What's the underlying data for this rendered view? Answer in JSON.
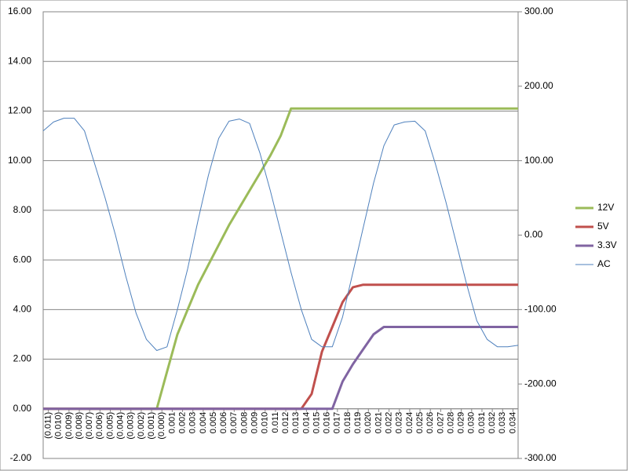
{
  "chart_data": {
    "type": "line",
    "x": [
      -0.0115,
      -0.0105,
      -0.0095,
      -0.0085,
      -0.0075,
      -0.0065,
      -0.0055,
      -0.0045,
      -0.0035,
      -0.0025,
      -0.0015,
      -0.0005,
      0.0005,
      0.0015,
      0.0025,
      0.0035,
      0.0045,
      0.0055,
      0.0065,
      0.0075,
      0.0085,
      0.0095,
      0.0105,
      0.0115,
      0.0125,
      0.0135,
      0.0145,
      0.0155,
      0.0165,
      0.0175,
      0.0185,
      0.0195,
      0.0205,
      0.0215,
      0.0225,
      0.0235,
      0.0245,
      0.0255,
      0.0265,
      0.0275,
      0.0285,
      0.0295,
      0.0305,
      0.0315,
      0.0325,
      0.0335,
      0.0345
    ],
    "series": [
      {
        "name": "12V",
        "color": "#9bbb59",
        "values": [
          0,
          0,
          0,
          0,
          0,
          0,
          0,
          0,
          0,
          0,
          0,
          0,
          1.5,
          3.0,
          4.0,
          5.0,
          5.8,
          6.6,
          7.4,
          8.1,
          8.8,
          9.5,
          10.2,
          11.0,
          12.1,
          12.1,
          12.1,
          12.1,
          12.1,
          12.1,
          12.1,
          12.1,
          12.1,
          12.1,
          12.1,
          12.1,
          12.1,
          12.1,
          12.1,
          12.1,
          12.1,
          12.1,
          12.1,
          12.1,
          12.1,
          12.1,
          12.1
        ]
      },
      {
        "name": "5V",
        "color": "#c0504d",
        "values": [
          0,
          0,
          0,
          0,
          0,
          0,
          0,
          0,
          0,
          0,
          0,
          0,
          0,
          0,
          0,
          0,
          0,
          0,
          0,
          0,
          0,
          0,
          0,
          0,
          0,
          0,
          0.6,
          2.3,
          3.3,
          4.3,
          4.9,
          5.0,
          5.0,
          5.0,
          5.0,
          5.0,
          5.0,
          5.0,
          5.0,
          5.0,
          5.0,
          5.0,
          5.0,
          5.0,
          5.0,
          5.0,
          5.0
        ]
      },
      {
        "name": "3.3V",
        "color": "#8064a2",
        "values": [
          0,
          0,
          0,
          0,
          0,
          0,
          0,
          0,
          0,
          0,
          0,
          0,
          0,
          0,
          0,
          0,
          0,
          0,
          0,
          0,
          0,
          0,
          0,
          0,
          0,
          0,
          0,
          0,
          0,
          1.1,
          1.8,
          2.4,
          3.0,
          3.3,
          3.3,
          3.3,
          3.3,
          3.3,
          3.3,
          3.3,
          3.3,
          3.3,
          3.3,
          3.3,
          3.3,
          3.3,
          3.3
        ]
      },
      {
        "name": "AC",
        "color": "#4f81bd",
        "axis": "y2",
        "values": [
          140,
          152,
          157,
          157,
          140,
          95,
          50,
          0,
          -55,
          -105,
          -140,
          -155,
          -150,
          -100,
          -45,
          20,
          80,
          130,
          153,
          156,
          150,
          110,
          60,
          5,
          -50,
          -100,
          -140,
          -150,
          -150,
          -110,
          -50,
          10,
          70,
          120,
          148,
          152,
          153,
          140,
          95,
          45,
          -10,
          -65,
          -115,
          -140,
          -150,
          -150,
          -148
        ]
      }
    ],
    "xlim": [
      -0.0115,
      0.0345
    ],
    "xticks": [
      {
        "value": -0.011,
        "label": "(0.011)"
      },
      {
        "value": -0.01,
        "label": "(0.010)"
      },
      {
        "value": -0.009,
        "label": "(0.009)"
      },
      {
        "value": -0.008,
        "label": "(0.008)"
      },
      {
        "value": -0.007,
        "label": "(0.007)"
      },
      {
        "value": -0.006,
        "label": "(0.006)"
      },
      {
        "value": -0.005,
        "label": "(0.005)"
      },
      {
        "value": -0.004,
        "label": "(0.004)"
      },
      {
        "value": -0.003,
        "label": "(0.003)"
      },
      {
        "value": -0.002,
        "label": "(0.002)"
      },
      {
        "value": -0.001,
        "label": "(0.001)"
      },
      {
        "value": 0,
        "label": "(0.000)"
      },
      {
        "value": 0.001,
        "label": "0.001"
      },
      {
        "value": 0.002,
        "label": "0.002"
      },
      {
        "value": 0.003,
        "label": "0.003"
      },
      {
        "value": 0.004,
        "label": "0.004"
      },
      {
        "value": 0.005,
        "label": "0.005"
      },
      {
        "value": 0.006,
        "label": "0.006"
      },
      {
        "value": 0.007,
        "label": "0.007"
      },
      {
        "value": 0.008,
        "label": "0.008"
      },
      {
        "value": 0.009,
        "label": "0.009"
      },
      {
        "value": 0.01,
        "label": "0.010"
      },
      {
        "value": 0.011,
        "label": "0.011"
      },
      {
        "value": 0.012,
        "label": "0.012"
      },
      {
        "value": 0.013,
        "label": "0.013"
      },
      {
        "value": 0.014,
        "label": "0.014"
      },
      {
        "value": 0.015,
        "label": "0.015"
      },
      {
        "value": 0.016,
        "label": "0.016"
      },
      {
        "value": 0.017,
        "label": "0.017"
      },
      {
        "value": 0.018,
        "label": "0.018"
      },
      {
        "value": 0.019,
        "label": "0.019"
      },
      {
        "value": 0.02,
        "label": "0.020"
      },
      {
        "value": 0.021,
        "label": "0.021"
      },
      {
        "value": 0.022,
        "label": "0.022"
      },
      {
        "value": 0.023,
        "label": "0.023"
      },
      {
        "value": 0.024,
        "label": "0.024"
      },
      {
        "value": 0.025,
        "label": "0.025"
      },
      {
        "value": 0.026,
        "label": "0.026"
      },
      {
        "value": 0.027,
        "label": "0.027"
      },
      {
        "value": 0.028,
        "label": "0.028"
      },
      {
        "value": 0.029,
        "label": "0.029"
      },
      {
        "value": 0.03,
        "label": "0.030"
      },
      {
        "value": 0.031,
        "label": "0.031"
      },
      {
        "value": 0.032,
        "label": "0.032"
      },
      {
        "value": 0.033,
        "label": "0.033"
      },
      {
        "value": 0.034,
        "label": "0.034"
      }
    ],
    "ylim": [
      -2,
      16
    ],
    "yticks": [
      {
        "value": -2,
        "label": "-2.00"
      },
      {
        "value": 0,
        "label": "0.00"
      },
      {
        "value": 2,
        "label": "2.00"
      },
      {
        "value": 4,
        "label": "4.00"
      },
      {
        "value": 6,
        "label": "6.00"
      },
      {
        "value": 8,
        "label": "8.00"
      },
      {
        "value": 10,
        "label": "10.00"
      },
      {
        "value": 12,
        "label": "12.00"
      },
      {
        "value": 14,
        "label": "14.00"
      },
      {
        "value": 16,
        "label": "16.00"
      }
    ],
    "y2lim": [
      -300,
      300
    ],
    "y2ticks": [
      {
        "value": -300,
        "label": "-300.00"
      },
      {
        "value": -200,
        "label": "-200.00"
      },
      {
        "value": -100,
        "label": "-100.00"
      },
      {
        "value": 0,
        "label": "0.00"
      },
      {
        "value": 100,
        "label": "100.00"
      },
      {
        "value": 200,
        "label": "200.00"
      },
      {
        "value": 300,
        "label": "300.00"
      }
    ],
    "grid": true,
    "legend": "right"
  }
}
